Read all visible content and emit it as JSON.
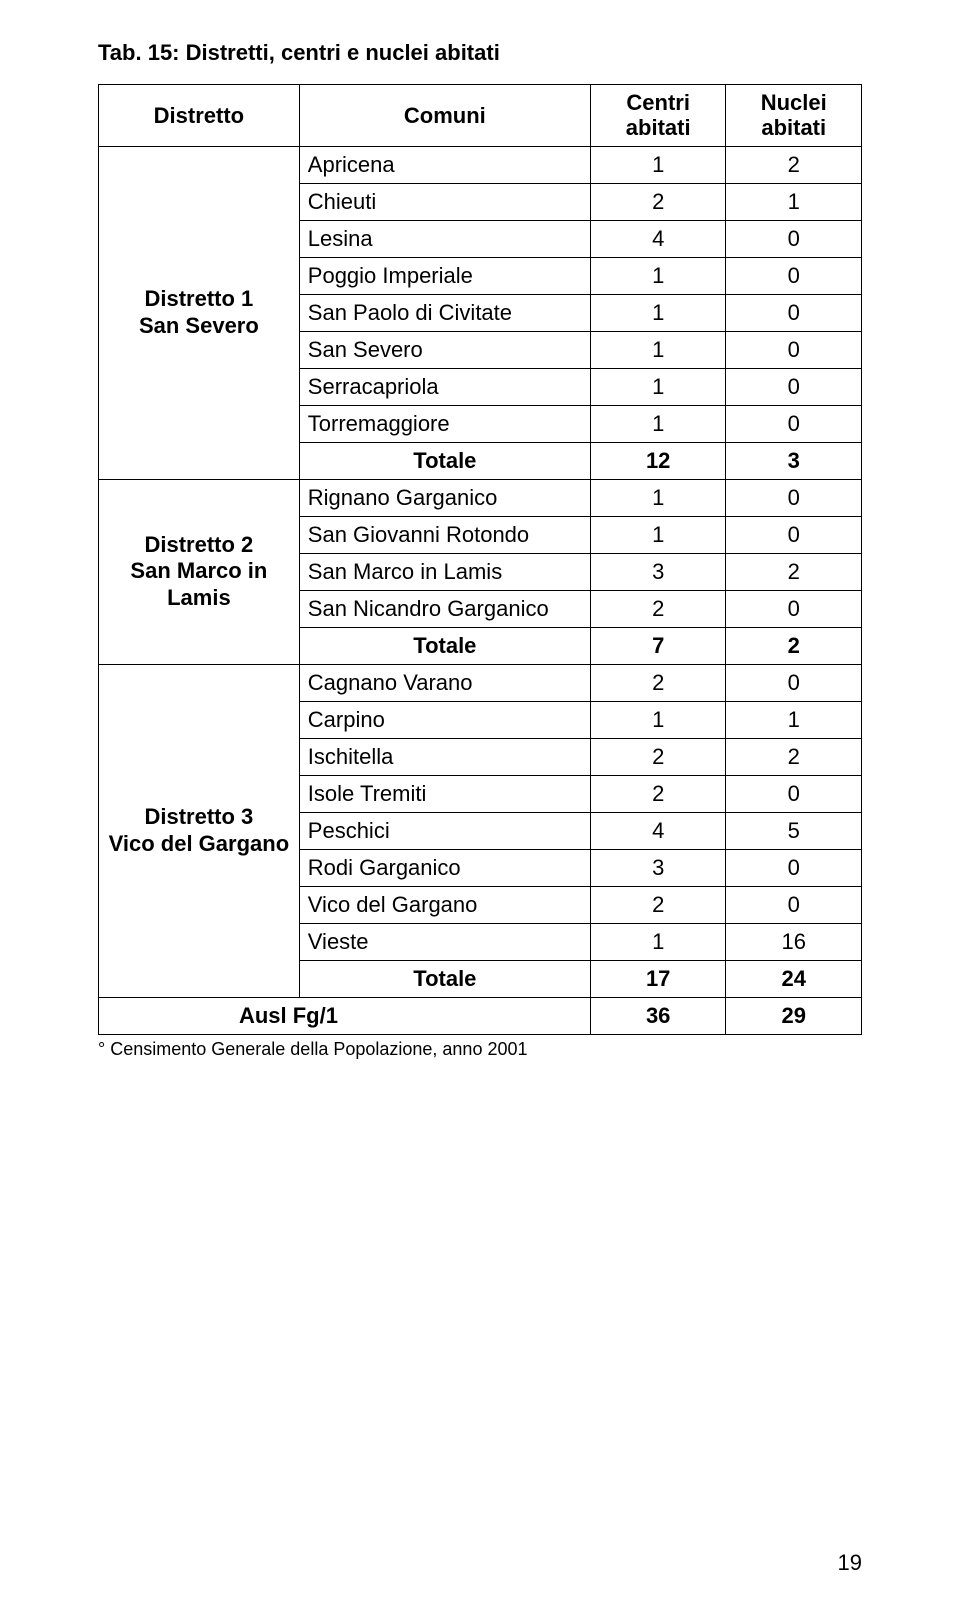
{
  "title": "Tab. 15: Distretti, centri e nuclei abitati",
  "headers": {
    "distretto": "Distretto",
    "comuni": "Comuni",
    "centri_line1": "Centri",
    "centri_line2": "abitati",
    "nuclei_line1": "Nuclei",
    "nuclei_line2": "abitati"
  },
  "districts": [
    {
      "name_line1": "Distretto 1",
      "name_line2": "San Severo",
      "rows": [
        {
          "name": "Apricena",
          "centri": 1,
          "nuclei": 2
        },
        {
          "name": "Chieuti",
          "centri": 2,
          "nuclei": 1
        },
        {
          "name": "Lesina",
          "centri": 4,
          "nuclei": 0
        },
        {
          "name": "Poggio Imperiale",
          "centri": 1,
          "nuclei": 0
        },
        {
          "name": "San Paolo di Civitate",
          "centri": 1,
          "nuclei": 0
        },
        {
          "name": "San Severo",
          "centri": 1,
          "nuclei": 0
        },
        {
          "name": "Serracapriola",
          "centri": 1,
          "nuclei": 0
        },
        {
          "name": "Torremaggiore",
          "centri": 1,
          "nuclei": 0
        }
      ],
      "total": {
        "name": "Totale",
        "centri": 12,
        "nuclei": 3
      }
    },
    {
      "name_line1": "Distretto 2",
      "name_line2": "San Marco in",
      "name_line3": "Lamis",
      "rows": [
        {
          "name": "Rignano Garganico",
          "centri": 1,
          "nuclei": 0
        },
        {
          "name": "San Giovanni Rotondo",
          "centri": 1,
          "nuclei": 0
        },
        {
          "name": "San Marco in Lamis",
          "centri": 3,
          "nuclei": 2
        },
        {
          "name": "San Nicandro Garganico",
          "centri": 2,
          "nuclei": 0
        }
      ],
      "total": {
        "name": "Totale",
        "centri": 7,
        "nuclei": 2
      }
    },
    {
      "name_line1": "Distretto 3",
      "name_line2": "Vico del Gargano",
      "rows": [
        {
          "name": "Cagnano Varano",
          "centri": 2,
          "nuclei": 0
        },
        {
          "name": "Carpino",
          "centri": 1,
          "nuclei": 1
        },
        {
          "name": "Ischitella",
          "centri": 2,
          "nuclei": 2
        },
        {
          "name": "Isole Tremiti",
          "centri": 2,
          "nuclei": 0
        },
        {
          "name": "Peschici",
          "centri": 4,
          "nuclei": 5
        },
        {
          "name": "Rodi Garganico",
          "centri": 3,
          "nuclei": 0
        },
        {
          "name": "Vico del Gargano",
          "centri": 2,
          "nuclei": 0
        },
        {
          "name": "Vieste",
          "centri": 1,
          "nuclei": 16
        }
      ],
      "total": {
        "name": "Totale",
        "centri": 17,
        "nuclei": 24
      }
    }
  ],
  "ausl": {
    "name": "Ausl Fg/1",
    "centri": 36,
    "nuclei": 29
  },
  "caption": "° Censimento Generale della Popolazione, anno 2001",
  "page_number": "19",
  "style": {
    "font_family": "Arial",
    "title_fontsize": 22,
    "cell_fontsize": 22,
    "caption_fontsize": 18,
    "border_color": "#000000",
    "background_color": "#ffffff",
    "text_color": "#000000"
  }
}
